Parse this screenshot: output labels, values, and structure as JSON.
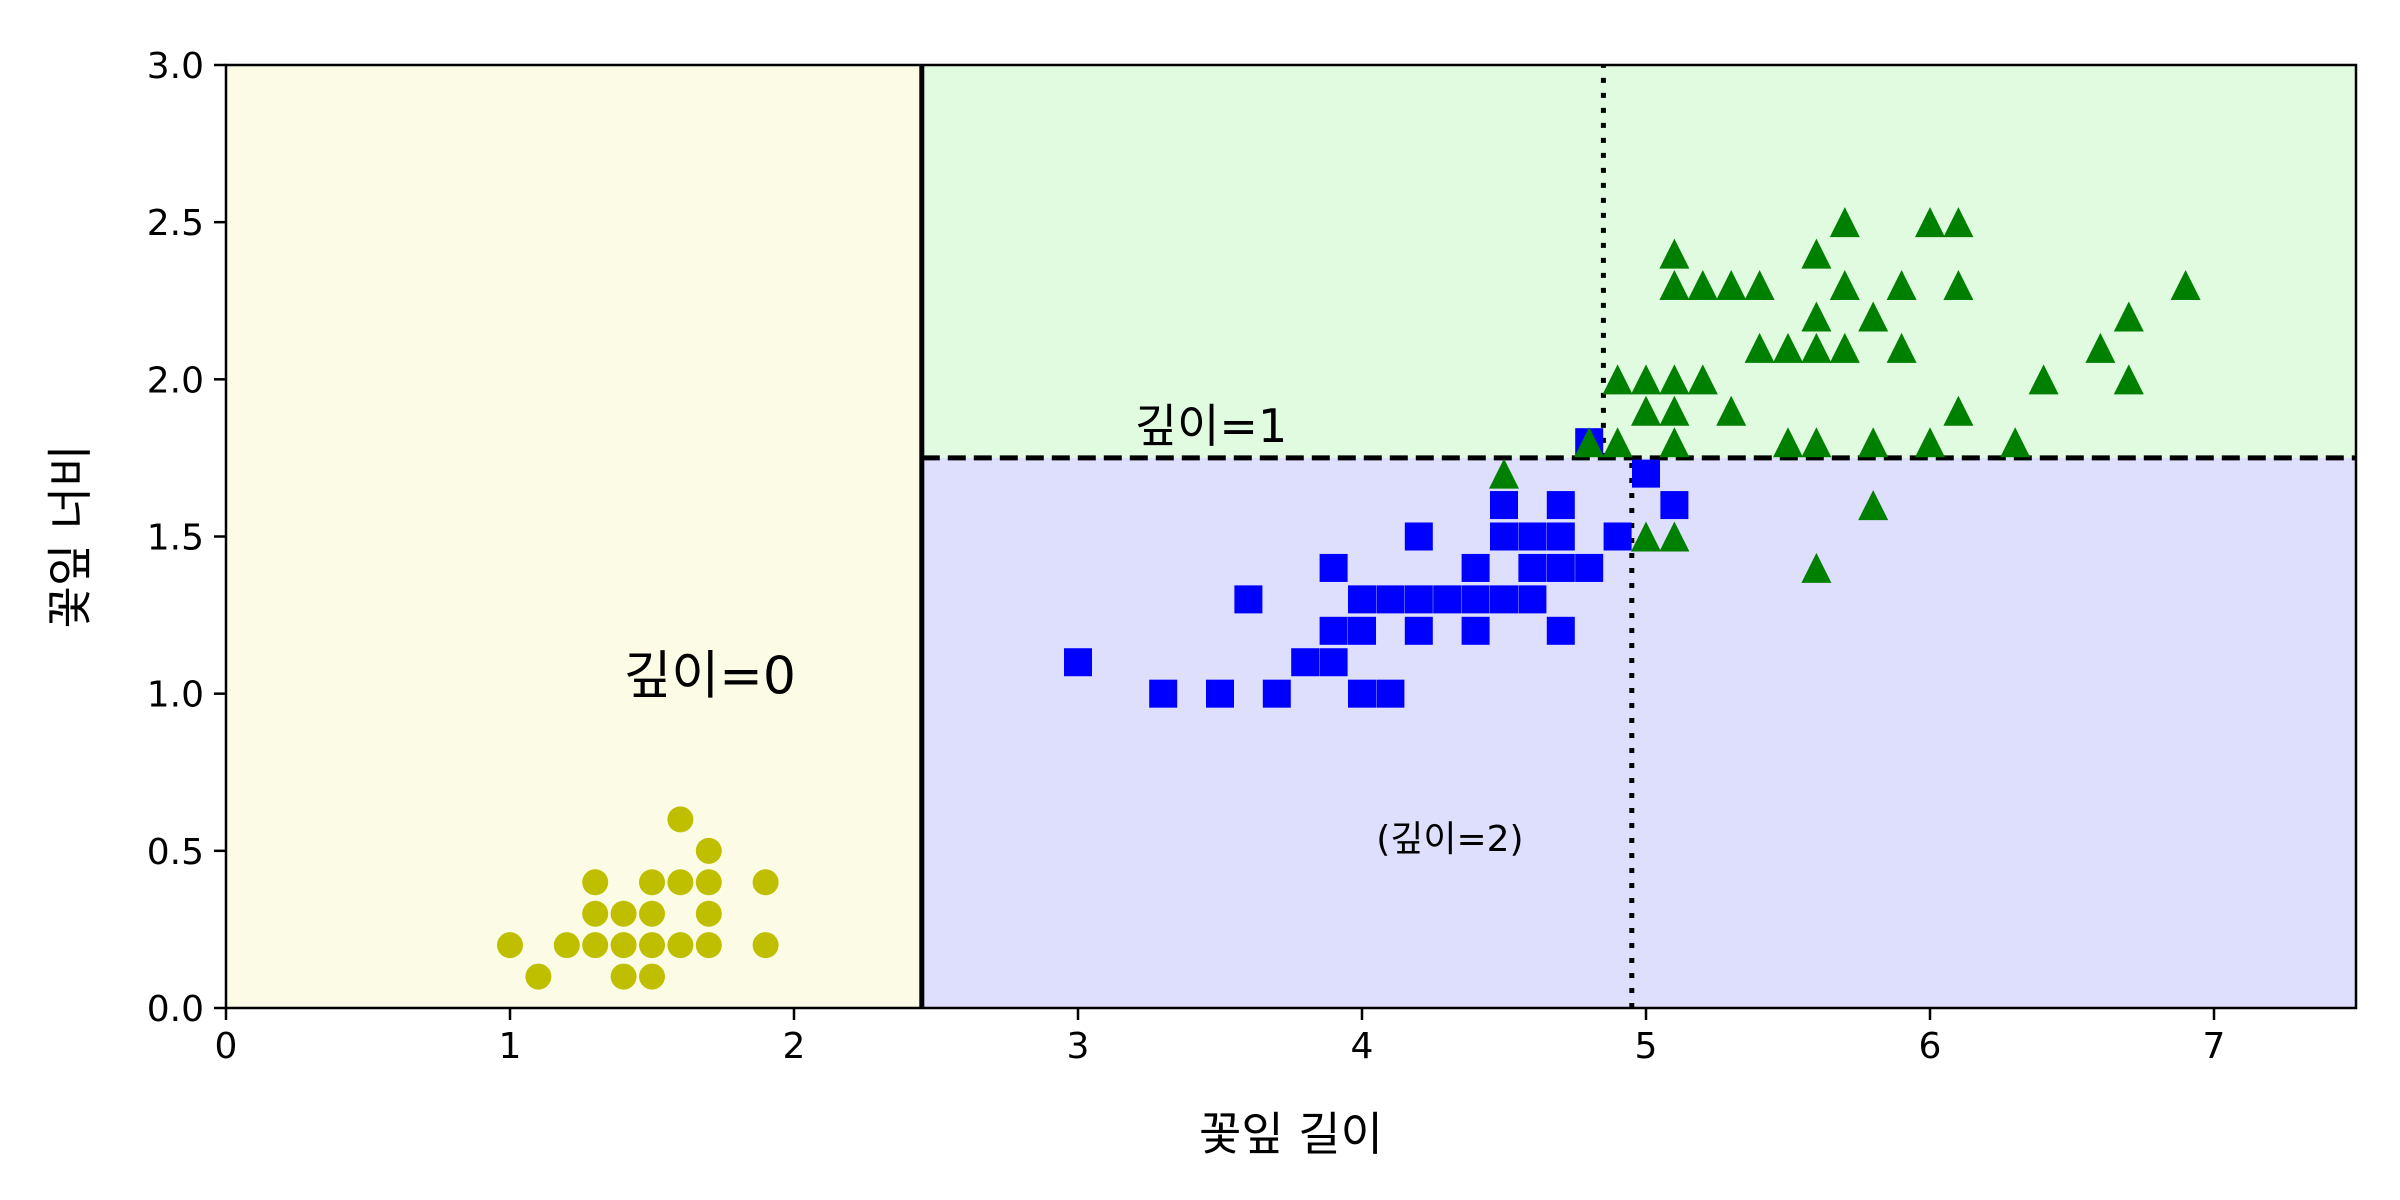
{
  "chart_data": {
    "type": "scatter",
    "xlabel": "꽃잎 길이",
    "ylabel": "꽃잎 너비",
    "xlim": [
      0,
      7.5
    ],
    "ylim": [
      0,
      3
    ],
    "xticks": [
      "0",
      "1",
      "2",
      "3",
      "4",
      "5",
      "6",
      "7"
    ],
    "yticks": [
      "0.0",
      "0.5",
      "1.0",
      "1.5",
      "2.0",
      "2.5",
      "3.0"
    ],
    "grid": false,
    "regions": [
      {
        "x": [
          0,
          2.45
        ],
        "y": [
          0,
          3
        ],
        "color": "#fcfce6"
      },
      {
        "x": [
          2.45,
          7.5
        ],
        "y": [
          1.75,
          3
        ],
        "color": "#e1fbe1"
      },
      {
        "x": [
          2.45,
          7.5
        ],
        "y": [
          0,
          1.75
        ],
        "color": "#dedefd"
      }
    ],
    "boundaries": [
      {
        "style": "solid",
        "from": [
          2.45,
          0
        ],
        "to": [
          2.45,
          3
        ]
      },
      {
        "style": "dashed",
        "from": [
          2.45,
          1.75
        ],
        "to": [
          7.5,
          1.75
        ]
      },
      {
        "style": "dotted",
        "from": [
          4.95,
          0
        ],
        "to": [
          4.95,
          1.75
        ]
      },
      {
        "style": "dotted",
        "from": [
          4.85,
          1.75
        ],
        "to": [
          4.85,
          3
        ]
      }
    ],
    "annotations": [
      {
        "text": "깊이=0",
        "x": 1.4,
        "y": 1.0,
        "size": "large"
      },
      {
        "text": "깊이=1",
        "x": 3.2,
        "y": 1.8,
        "size": "medium"
      },
      {
        "text": "(깊이=2)",
        "x": 4.05,
        "y": 0.5,
        "size": "small"
      }
    ],
    "series": [
      {
        "marker": "circle",
        "color": "#bfbf00",
        "points": [
          [
            1.0,
            0.2
          ],
          [
            1.1,
            0.1
          ],
          [
            1.2,
            0.2
          ],
          [
            1.3,
            0.2
          ],
          [
            1.3,
            0.3
          ],
          [
            1.3,
            0.4
          ],
          [
            1.4,
            0.1
          ],
          [
            1.4,
            0.2
          ],
          [
            1.4,
            0.3
          ],
          [
            1.5,
            0.1
          ],
          [
            1.5,
            0.2
          ],
          [
            1.5,
            0.3
          ],
          [
            1.5,
            0.4
          ],
          [
            1.6,
            0.2
          ],
          [
            1.6,
            0.4
          ],
          [
            1.6,
            0.6
          ],
          [
            1.7,
            0.2
          ],
          [
            1.7,
            0.3
          ],
          [
            1.7,
            0.4
          ],
          [
            1.7,
            0.5
          ],
          [
            1.9,
            0.2
          ],
          [
            1.9,
            0.4
          ]
        ]
      },
      {
        "marker": "square",
        "color": "#0000ff",
        "points": [
          [
            3.0,
            1.1
          ],
          [
            3.3,
            1.0
          ],
          [
            3.5,
            1.0
          ],
          [
            3.6,
            1.3
          ],
          [
            3.7,
            1.0
          ],
          [
            3.8,
            1.1
          ],
          [
            3.9,
            1.1
          ],
          [
            3.9,
            1.2
          ],
          [
            3.9,
            1.4
          ],
          [
            4.0,
            1.0
          ],
          [
            4.0,
            1.2
          ],
          [
            4.0,
            1.3
          ],
          [
            4.1,
            1.0
          ],
          [
            4.1,
            1.3
          ],
          [
            4.2,
            1.2
          ],
          [
            4.2,
            1.3
          ],
          [
            4.2,
            1.5
          ],
          [
            4.3,
            1.3
          ],
          [
            4.4,
            1.2
          ],
          [
            4.4,
            1.3
          ],
          [
            4.4,
            1.4
          ],
          [
            4.5,
            1.3
          ],
          [
            4.5,
            1.5
          ],
          [
            4.5,
            1.6
          ],
          [
            4.6,
            1.3
          ],
          [
            4.6,
            1.4
          ],
          [
            4.6,
            1.5
          ],
          [
            4.7,
            1.2
          ],
          [
            4.7,
            1.4
          ],
          [
            4.7,
            1.5
          ],
          [
            4.7,
            1.6
          ],
          [
            4.8,
            1.4
          ],
          [
            4.8,
            1.8
          ],
          [
            4.9,
            1.5
          ],
          [
            5.0,
            1.7
          ],
          [
            5.1,
            1.6
          ]
        ]
      },
      {
        "marker": "triangle",
        "color": "#008000",
        "points": [
          [
            4.5,
            1.7
          ],
          [
            4.8,
            1.8
          ],
          [
            4.9,
            1.8
          ],
          [
            4.9,
            2.0
          ],
          [
            5.0,
            1.5
          ],
          [
            5.0,
            1.9
          ],
          [
            5.0,
            2.0
          ],
          [
            5.1,
            1.5
          ],
          [
            5.1,
            1.8
          ],
          [
            5.1,
            1.9
          ],
          [
            5.1,
            2.0
          ],
          [
            5.1,
            2.3
          ],
          [
            5.1,
            2.4
          ],
          [
            5.2,
            2.0
          ],
          [
            5.2,
            2.3
          ],
          [
            5.3,
            1.9
          ],
          [
            5.3,
            2.3
          ],
          [
            5.4,
            2.1
          ],
          [
            5.4,
            2.3
          ],
          [
            5.5,
            1.8
          ],
          [
            5.5,
            2.1
          ],
          [
            5.6,
            1.4
          ],
          [
            5.6,
            1.8
          ],
          [
            5.6,
            2.1
          ],
          [
            5.6,
            2.2
          ],
          [
            5.6,
            2.4
          ],
          [
            5.7,
            2.1
          ],
          [
            5.7,
            2.3
          ],
          [
            5.7,
            2.5
          ],
          [
            5.8,
            1.6
          ],
          [
            5.8,
            1.8
          ],
          [
            5.8,
            2.2
          ],
          [
            5.9,
            2.1
          ],
          [
            5.9,
            2.3
          ],
          [
            6.0,
            1.8
          ],
          [
            6.0,
            2.5
          ],
          [
            6.1,
            1.9
          ],
          [
            6.1,
            2.3
          ],
          [
            6.1,
            2.5
          ],
          [
            6.3,
            1.8
          ],
          [
            6.4,
            2.0
          ],
          [
            6.6,
            2.1
          ],
          [
            6.7,
            2.0
          ],
          [
            6.7,
            2.2
          ],
          [
            6.9,
            2.3
          ]
        ]
      }
    ]
  }
}
